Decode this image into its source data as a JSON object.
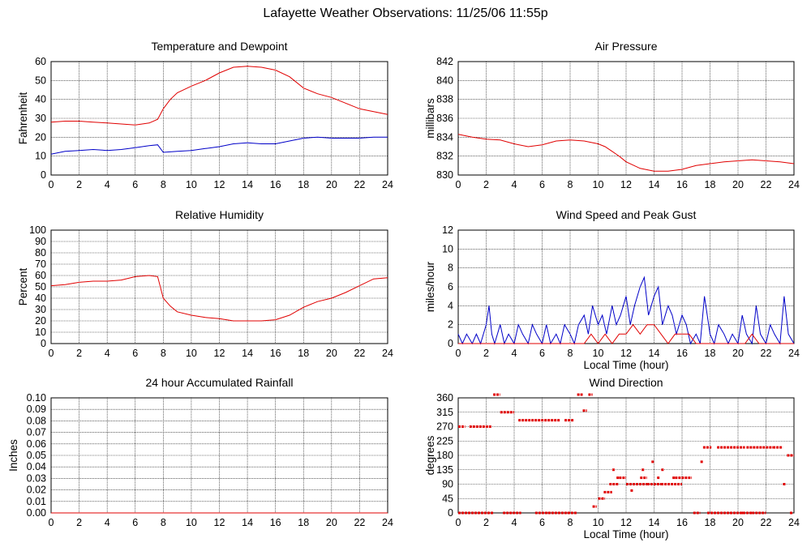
{
  "page": {
    "title": "Lafayette Weather Observations: 11/25/06 11:55p"
  },
  "colors": {
    "primary": "#e00000",
    "secondary": "#0000c8",
    "grid": "#000000"
  },
  "chart_data": [
    {
      "id": "temp",
      "type": "line",
      "title": "Temperature and Dewpoint",
      "xlabel": "",
      "ylabel": "Fahrenheit",
      "xlim": [
        0,
        24
      ],
      "ylim": [
        0,
        60
      ],
      "xticks": [
        "0",
        "2",
        "4",
        "6",
        "8",
        "10",
        "12",
        "14",
        "16",
        "18",
        "20",
        "22",
        "24"
      ],
      "yticks": [
        "0",
        "10",
        "20",
        "30",
        "40",
        "50",
        "60"
      ],
      "series": [
        {
          "color": "#e00000",
          "x": [
            0,
            1,
            2,
            3,
            4,
            5,
            6,
            7,
            7.6,
            8,
            8.5,
            9,
            10,
            11,
            12,
            13,
            14,
            15,
            16,
            17,
            18,
            19,
            20,
            21,
            22,
            23,
            24
          ],
          "y": [
            28,
            28.5,
            28.5,
            28,
            27.5,
            27,
            26.5,
            27.5,
            29.5,
            35,
            40,
            43.5,
            47,
            50,
            54,
            57,
            57.5,
            57,
            55.5,
            52,
            46,
            43,
            41,
            38,
            35,
            33.5,
            32
          ]
        },
        {
          "color": "#0000c8",
          "x": [
            0,
            1,
            2,
            3,
            4,
            5,
            6,
            7,
            7.6,
            8,
            9,
            10,
            11,
            12,
            13,
            14,
            15,
            16,
            17,
            18,
            19,
            20,
            21,
            22,
            23,
            24
          ],
          "y": [
            11,
            12.5,
            13,
            13.5,
            13,
            13.5,
            14.5,
            15.5,
            16,
            12,
            12.5,
            13,
            14,
            15,
            16.5,
            17,
            16.5,
            16.5,
            18,
            19.5,
            20,
            19.5,
            19.5,
            19.5,
            20,
            20
          ]
        }
      ]
    },
    {
      "id": "pressure",
      "type": "line",
      "title": "Air Pressure",
      "xlabel": "",
      "ylabel": "millibars",
      "xlim": [
        0,
        24
      ],
      "ylim": [
        830,
        842
      ],
      "xticks": [
        "0",
        "2",
        "4",
        "6",
        "8",
        "10",
        "12",
        "14",
        "16",
        "18",
        "20",
        "22",
        "24"
      ],
      "yticks": [
        "830",
        "832",
        "834",
        "836",
        "838",
        "840",
        "842"
      ],
      "series": [
        {
          "color": "#e00000",
          "x": [
            0,
            1,
            2,
            3,
            4,
            5,
            6,
            7,
            8,
            9,
            10,
            10.5,
            11,
            11.5,
            12,
            13,
            14,
            15,
            16,
            17,
            18,
            19,
            20,
            21,
            22,
            23,
            24
          ],
          "y": [
            834.3,
            834,
            833.8,
            833.7,
            833.3,
            833,
            833.2,
            833.6,
            833.7,
            833.6,
            833.3,
            833,
            832.5,
            832,
            831.4,
            830.7,
            830.4,
            830.4,
            830.6,
            831,
            831.2,
            831.4,
            831.5,
            831.6,
            831.5,
            831.4,
            831.2
          ]
        }
      ]
    },
    {
      "id": "humidity",
      "type": "line",
      "title": "Relative Humidity",
      "xlabel": "",
      "ylabel": "Percent",
      "xlim": [
        0,
        24
      ],
      "ylim": [
        0,
        100
      ],
      "xticks": [
        "0",
        "2",
        "4",
        "6",
        "8",
        "10",
        "12",
        "14",
        "16",
        "18",
        "20",
        "22",
        "24"
      ],
      "yticks": [
        "0",
        "10",
        "20",
        "30",
        "40",
        "50",
        "60",
        "70",
        "80",
        "90",
        "100"
      ],
      "series": [
        {
          "color": "#e00000",
          "x": [
            0,
            1,
            2,
            3,
            4,
            5,
            6,
            7,
            7.6,
            8,
            8.5,
            9,
            10,
            11,
            12,
            13,
            14,
            15,
            16,
            17,
            18,
            19,
            20,
            21,
            22,
            23,
            24
          ],
          "y": [
            51,
            52,
            54,
            55,
            55,
            56,
            59,
            60,
            59,
            40,
            33,
            28,
            25,
            23,
            22,
            20,
            20,
            20,
            21,
            25,
            32,
            37,
            40,
            45,
            51,
            57,
            58
          ]
        }
      ]
    },
    {
      "id": "wind",
      "type": "line",
      "title": "Wind Speed and Peak Gust",
      "xlabel": "Local Time (hour)",
      "ylabel": "miles/hour",
      "xlim": [
        0,
        24
      ],
      "ylim": [
        0,
        12
      ],
      "xticks": [
        "0",
        "2",
        "4",
        "6",
        "8",
        "10",
        "12",
        "14",
        "16",
        "18",
        "20",
        "22",
        "24"
      ],
      "yticks": [
        "0",
        "2",
        "4",
        "6",
        "8",
        "10",
        "12"
      ],
      "series": [
        {
          "color": "#0000c8",
          "x": [
            0,
            0.3,
            0.6,
            1,
            1.3,
            1.6,
            2,
            2.2,
            2.4,
            2.6,
            3,
            3.3,
            3.6,
            4,
            4.3,
            4.6,
            5,
            5.3,
            5.6,
            6,
            6.3,
            6.6,
            7,
            7.3,
            7.6,
            8,
            8.3,
            8.6,
            9,
            9.3,
            9.6,
            10,
            10.3,
            10.6,
            11,
            11.3,
            11.6,
            12,
            12.3,
            12.6,
            13,
            13.3,
            13.6,
            14,
            14.3,
            14.6,
            15,
            15.3,
            15.6,
            16,
            16.3,
            16.6,
            17,
            17.3,
            17.6,
            18,
            18.3,
            18.6,
            19,
            19.3,
            19.6,
            20,
            20.3,
            20.6,
            21,
            21.3,
            21.6,
            22,
            22.3,
            22.6,
            23,
            23.3,
            23.6,
            24
          ],
          "y": [
            1,
            0,
            1,
            0,
            1,
            0,
            2,
            4,
            1,
            0,
            2,
            0,
            1,
            0,
            2,
            1,
            0,
            2,
            1,
            0,
            2,
            0,
            1,
            0,
            2,
            1,
            0,
            2,
            3,
            1,
            4,
            2,
            3,
            1,
            4,
            2,
            3,
            5,
            2,
            4,
            6,
            7,
            3,
            5,
            6,
            2,
            4,
            3,
            1,
            3,
            2,
            0,
            1,
            0,
            5,
            1,
            0,
            2,
            1,
            0,
            1,
            0,
            3,
            1,
            0,
            4,
            1,
            0,
            2,
            1,
            0,
            5,
            1,
            0
          ]
        },
        {
          "color": "#e00000",
          "x": [
            0,
            2.5,
            3,
            9,
            9.5,
            10,
            10.5,
            11,
            11.5,
            12,
            12.5,
            13,
            13.5,
            14,
            14.5,
            15,
            15.5,
            16,
            16.5,
            17,
            20.5,
            21,
            21.5,
            22,
            24
          ],
          "y": [
            0,
            0,
            0,
            0,
            1,
            0,
            1,
            0,
            1,
            1,
            2,
            1,
            2,
            2,
            1,
            0,
            1,
            1,
            1,
            0,
            0,
            1,
            0,
            0,
            0
          ]
        }
      ]
    },
    {
      "id": "rain",
      "type": "line",
      "title": "24 hour Accumulated Rainfall",
      "xlabel": "",
      "ylabel": "Inches",
      "xlim": [
        0,
        24
      ],
      "ylim": [
        0,
        0.1
      ],
      "xticks": [
        "0",
        "2",
        "4",
        "6",
        "8",
        "10",
        "12",
        "14",
        "16",
        "18",
        "20",
        "22",
        "24"
      ],
      "yticks": [
        "0.00",
        "0.01",
        "0.02",
        "0.03",
        "0.04",
        "0.05",
        "0.06",
        "0.07",
        "0.08",
        "0.09",
        "0.10"
      ],
      "series": [
        {
          "color": "#e00000",
          "x": [
            0,
            24
          ],
          "y": [
            0,
            0
          ]
        }
      ]
    },
    {
      "id": "winddir",
      "type": "scatter",
      "title": "Wind Direction",
      "xlabel": "Local Time (hour)",
      "ylabel": "degrees",
      "xlim": [
        0,
        24
      ],
      "ylim": [
        0,
        360
      ],
      "xticks": [
        "0",
        "2",
        "4",
        "6",
        "8",
        "10",
        "12",
        "14",
        "16",
        "18",
        "20",
        "22",
        "24"
      ],
      "yticks": [
        "0",
        "45",
        "90",
        "135",
        "180",
        "225",
        "270",
        "315",
        "360"
      ],
      "segments": [
        [
          0,
          2.5,
          0
        ],
        [
          0,
          0.5,
          270
        ],
        [
          0.8,
          2.4,
          270
        ],
        [
          2.5,
          3,
          370
        ],
        [
          3,
          4,
          315
        ],
        [
          3.2,
          4.5,
          0
        ],
        [
          4.3,
          7.3,
          290
        ],
        [
          5.5,
          8.5,
          0
        ],
        [
          7.6,
          8.3,
          290
        ],
        [
          8.5,
          8.9,
          370
        ],
        [
          8.9,
          9.2,
          320
        ],
        [
          9.3,
          9.6,
          370
        ],
        [
          9.6,
          9.9,
          20
        ],
        [
          10,
          10.5,
          45
        ],
        [
          10.4,
          11,
          65
        ],
        [
          10.8,
          11.5,
          90
        ],
        [
          11.5,
          12,
          110
        ],
        [
          12,
          13.5,
          90
        ],
        [
          13,
          13.5,
          110
        ],
        [
          13.5,
          14.5,
          90
        ],
        [
          14.5,
          16,
          90
        ],
        [
          15.5,
          16.7,
          110
        ],
        [
          16.8,
          17.3,
          0
        ],
        [
          17.5,
          18.1,
          205
        ],
        [
          17.8,
          21,
          0
        ],
        [
          18.5,
          20.5,
          205
        ],
        [
          20.6,
          22.5,
          205
        ],
        [
          22.5,
          23.2,
          205
        ],
        [
          23.5,
          24,
          180
        ],
        [
          21,
          22,
          0
        ]
      ],
      "points": [
        [
          11.1,
          135
        ],
        [
          11.4,
          110
        ],
        [
          12.4,
          70
        ],
        [
          13.2,
          135
        ],
        [
          13.9,
          160
        ],
        [
          14.3,
          110
        ],
        [
          14.6,
          135
        ],
        [
          15.4,
          110
        ],
        [
          17.4,
          160
        ],
        [
          23.3,
          90
        ],
        [
          23.8,
          0
        ],
        [
          20.3,
          0
        ],
        [
          19.5,
          0
        ],
        [
          6.5,
          0
        ],
        [
          7.9,
          0
        ]
      ]
    }
  ]
}
